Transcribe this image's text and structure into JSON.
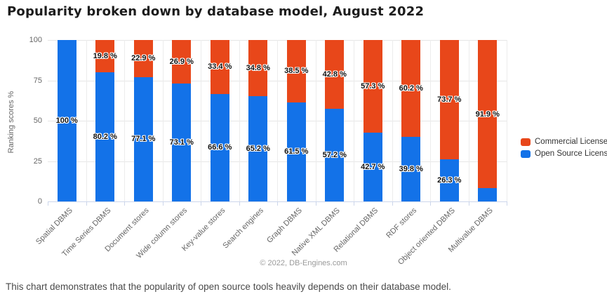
{
  "caption": "This chart demonstrates that the popularity of open source tools heavily depends on their database model.",
  "credits": "© 2022, DB-Engines.com",
  "chart_data": {
    "type": "bar",
    "stacked": true,
    "title": "Popularity broken down by database model, August 2022",
    "xlabel": "",
    "ylabel": "Ranking scores %",
    "ylim": [
      0,
      100
    ],
    "yticks": [
      0,
      25,
      50,
      75,
      100
    ],
    "grid": true,
    "legend_position": "right",
    "categories": [
      "Spatial DBMS",
      "Time Series DBMS",
      "Document stores",
      "Wide column stores",
      "Key-value stores",
      "Search engines",
      "Graph DBMS",
      "Native XML DBMS",
      "Relational DBMS",
      "RDF stores",
      "Object oriented DBMS",
      "Multivalue DBMS"
    ],
    "series": [
      {
        "name": "Commercial License",
        "color": "#e8471a",
        "values": [
          0,
          19.8,
          22.9,
          26.9,
          33.4,
          34.8,
          38.5,
          42.8,
          57.3,
          60.2,
          73.7,
          91.9
        ]
      },
      {
        "name": "Open Source License",
        "color": "#1372e8",
        "values": [
          100,
          80.2,
          77.1,
          73.1,
          66.6,
          65.2,
          61.5,
          57.2,
          42.7,
          39.8,
          26.3,
          8.1
        ]
      }
    ],
    "stack_order": [
      "Open Source License",
      "Commercial License"
    ],
    "data_labels": {
      "suffix": " %",
      "hidden": [
        {
          "series": "Open Source License",
          "category": "Multivalue DBMS"
        }
      ]
    }
  }
}
